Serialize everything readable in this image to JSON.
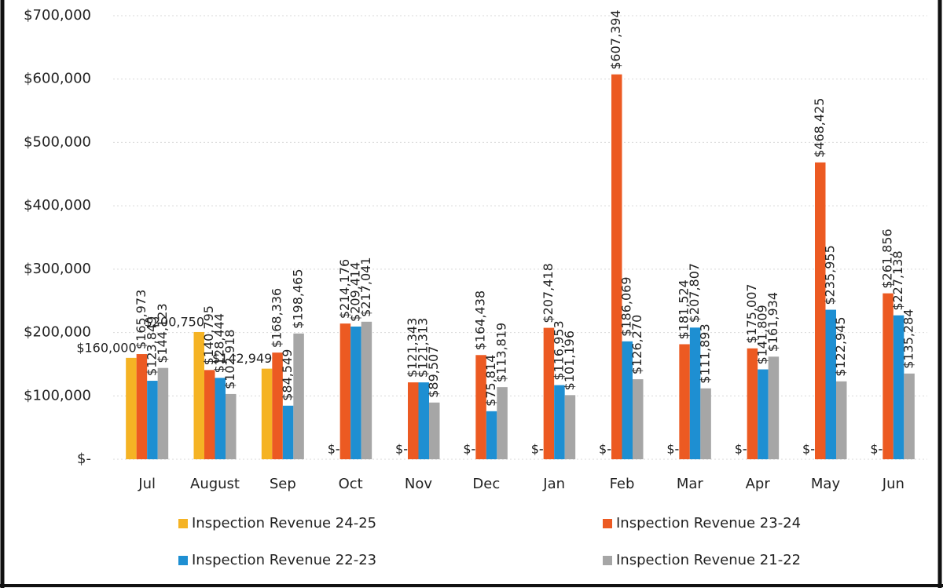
{
  "chart_data": {
    "type": "bar",
    "categories": [
      "Jul",
      "August",
      "Sep",
      "Oct",
      "Nov",
      "Dec",
      "Jan",
      "Feb",
      "Mar",
      "Apr",
      "May",
      "Jun"
    ],
    "series": [
      {
        "name": "Inspection Revenue 24-25",
        "color": "#f5b324",
        "values": [
          160000,
          200750,
          142949,
          0,
          0,
          0,
          0,
          0,
          0,
          0,
          0,
          0
        ],
        "value_labels": [
          "$160,000",
          "$200,750",
          "$142,949",
          "$-",
          "$-",
          "$-",
          "$-",
          "$-",
          "$-",
          "$-",
          "$-",
          "$-"
        ]
      },
      {
        "name": "Inspection Revenue 23-24",
        "color": "#ec5a22",
        "values": [
          165973,
          140795,
          168336,
          214176,
          121343,
          164438,
          207418,
          607394,
          181524,
          175007,
          468425,
          261856
        ],
        "value_labels": [
          "$165,973",
          "$140,795",
          "$168,336",
          "$214,176",
          "$121,343",
          "$164,438",
          "$207,418",
          "$607,394",
          "$181,524",
          "$175,007",
          "$468,425",
          "$261,856"
        ]
      },
      {
        "name": "Inspection Revenue 22-23",
        "color": "#1e8fd2",
        "values": [
          123849,
          128444,
          84549,
          209414,
          121313,
          75814,
          116953,
          186069,
          207807,
          141809,
          235955,
          227138
        ],
        "value_labels": [
          "$123,849",
          "$128,444",
          "$84,549",
          "$209,414",
          "$121,313",
          "$75,814",
          "$116,953",
          "$186,069",
          "$207,807",
          "$141,809",
          "$235,955",
          "$227,138"
        ]
      },
      {
        "name": "Inspection Revenue 21-22",
        "color": "#a6a6a6",
        "values": [
          144123,
          102918,
          198465,
          217041,
          89507,
          113819,
          101196,
          126270,
          111893,
          161934,
          122945,
          135284
        ],
        "value_labels": [
          "$144,123",
          "$102,918",
          "$198,465",
          "$217,041",
          "$89,507",
          "$113,819",
          "$101,196",
          "$126,270",
          "$111,893",
          "$161,934",
          "$122,945",
          "$135,284"
        ]
      }
    ],
    "ylim": [
      0,
      700000
    ],
    "yticks": [
      {
        "value": 0,
        "label": "$-"
      },
      {
        "value": 100000,
        "label": "$100,000"
      },
      {
        "value": 200000,
        "label": "$200,000"
      },
      {
        "value": 300000,
        "label": "$300,000"
      },
      {
        "value": 400000,
        "label": "$400,000"
      },
      {
        "value": 500000,
        "label": "$500,000"
      },
      {
        "value": 600000,
        "label": "$600,000"
      },
      {
        "value": 700000,
        "label": "$700,000"
      }
    ],
    "grid": true,
    "legend": "bottom"
  }
}
